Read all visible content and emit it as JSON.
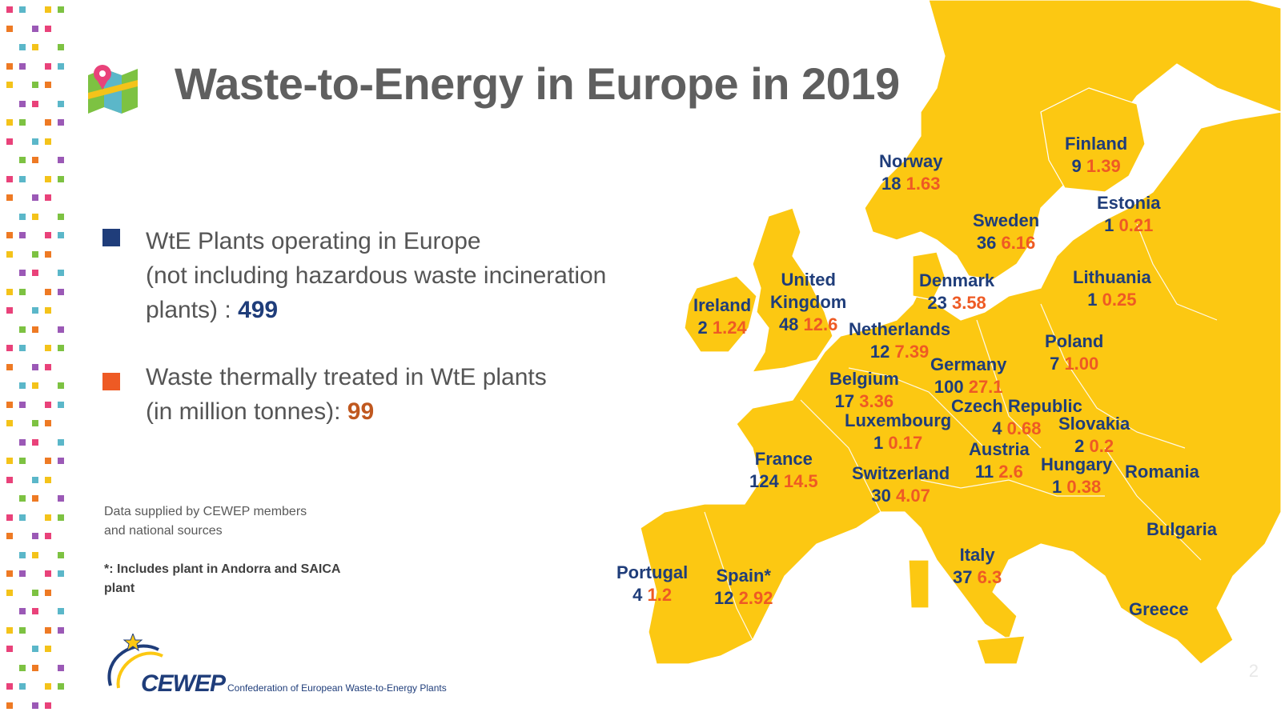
{
  "title": "Waste-to-Energy in Europe in 2019",
  "legend": {
    "plants": {
      "line1": "WtE Plants operating in Europe",
      "line2": "(not including hazardous waste incineration",
      "line3_prefix": "plants) : ",
      "value": "499",
      "color": "#1f3d7a"
    },
    "waste": {
      "line1": "Waste thermally treated in WtE plants",
      "line2_prefix": "(in million tonnes): ",
      "value": "99",
      "color": "#ee5a24"
    }
  },
  "notes": {
    "source_line1": "Data supplied by CEWEP members",
    "source_line2": "and national sources",
    "footnote_line1": "*: Includes plant in Andorra and SAICA",
    "footnote_line2": "plant"
  },
  "logo": {
    "name": "CEWEP",
    "subtitle": "Confederation of European Waste-to-Energy Plants"
  },
  "page_number": "2",
  "colors": {
    "land": "#fcc812",
    "country_name": "#1f3d7a",
    "plants_value": "#1f3d7a",
    "waste_value": "#ee5a24",
    "title": "#5f5f5f"
  },
  "countries": {
    "norway": {
      "name": "Norway",
      "plants": "18",
      "waste": "1.63"
    },
    "finland": {
      "name": "Finland",
      "plants": "9",
      "waste": "1.39"
    },
    "sweden": {
      "name": "Sweden",
      "plants": "36",
      "waste": "6.16"
    },
    "estonia": {
      "name": "Estonia",
      "plants": "1",
      "waste": "0.21"
    },
    "lithuania": {
      "name": "Lithuania",
      "plants": "1",
      "waste": "0.25"
    },
    "denmark": {
      "name": "Denmark",
      "plants": "23",
      "waste": "3.58"
    },
    "uk_line1": "United",
    "uk": {
      "name": "Kingdom",
      "plants": "48",
      "waste": "12.6"
    },
    "ireland": {
      "name": "Ireland",
      "plants": "2",
      "waste": "1.24"
    },
    "netherlands": {
      "name": "Netherlands",
      "plants": "12",
      "waste": "7.39"
    },
    "poland": {
      "name": "Poland",
      "plants": "7",
      "waste": "1.00"
    },
    "germany": {
      "name": "Germany",
      "plants": "100",
      "waste": "27.1"
    },
    "belgium": {
      "name": "Belgium",
      "plants": "17",
      "waste": "3.36"
    },
    "czech": {
      "name": "Czech Republic",
      "plants": "4",
      "waste": "0.68"
    },
    "luxembourg": {
      "name": "Luxembourg",
      "plants": "1",
      "waste": "0.17"
    },
    "slovakia": {
      "name": "Slovakia",
      "plants": "2",
      "waste": "0.2"
    },
    "austria": {
      "name": "Austria",
      "plants": "11",
      "waste": "2.6"
    },
    "hungary": {
      "name": "Hungary",
      "plants": "1",
      "waste": "0.38"
    },
    "france": {
      "name": "France",
      "plants": "124",
      "waste": "14.5"
    },
    "switzerland": {
      "name": "Switzerland",
      "plants": "30",
      "waste": "4.07"
    },
    "italy": {
      "name": "Italy",
      "plants": "37",
      "waste": "6.3"
    },
    "portugal": {
      "name": "Portugal",
      "plants": "4",
      "waste": "1.2"
    },
    "spain": {
      "name": "Spain*",
      "plants": "12",
      "waste": "2.92"
    },
    "romania": {
      "name": "Romania"
    },
    "bulgaria": {
      "name": "Bulgaria"
    },
    "greece": {
      "name": "Greece"
    }
  }
}
